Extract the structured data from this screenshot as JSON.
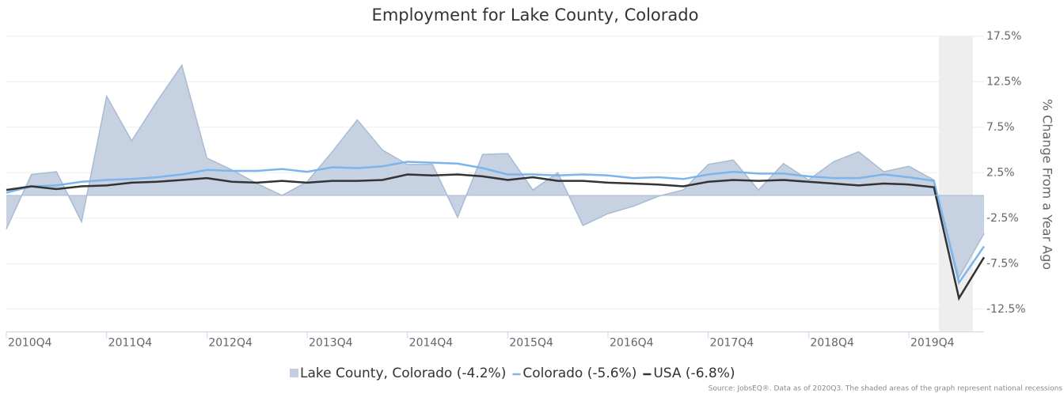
{
  "chart_data": {
    "type": "area-line",
    "title": "Employment for Lake County, Colorado",
    "y_label": "% Change From a Year Ago",
    "source": "Source: JobsEQ®. Data as of 2020Q3. The shaded areas of the graph represent national recessions",
    "categories": [
      "2010Q4",
      null,
      null,
      null,
      "2011Q4",
      null,
      null,
      null,
      "2012Q4",
      null,
      null,
      null,
      "2013Q4",
      null,
      null,
      null,
      "2014Q4",
      null,
      null,
      null,
      "2015Q4",
      null,
      null,
      null,
      "2016Q4",
      null,
      null,
      null,
      "2017Q4",
      null,
      null,
      null,
      "2018Q4",
      null,
      null,
      null,
      "2019Q4",
      null,
      null,
      null
    ],
    "series": [
      {
        "name": "Lake County, Colorado (-4.2%)",
        "kind": "area",
        "color": "#c3cfe0",
        "values": [
          -3.7,
          2.3,
          2.6,
          -2.9,
          10.9,
          6.0,
          10.3,
          14.3,
          4.1,
          2.8,
          1.3,
          0.0,
          1.5,
          4.8,
          8.3,
          5.0,
          3.4,
          3.4,
          -2.4,
          4.5,
          4.6,
          0.6,
          2.5,
          -3.3,
          -2.0,
          -1.2,
          -0.1,
          0.6,
          3.4,
          3.9,
          0.6,
          3.5,
          1.7,
          3.7,
          4.8,
          2.6,
          3.2,
          1.7,
          -9.0,
          -4.2
        ]
      },
      {
        "name": "Colorado (-5.6%)",
        "kind": "line",
        "color": "#7cb5ec",
        "values": [
          0.3,
          1.0,
          1.1,
          1.5,
          1.7,
          1.8,
          2.0,
          2.3,
          2.8,
          2.7,
          2.7,
          2.9,
          2.6,
          3.1,
          3.0,
          3.2,
          3.7,
          3.6,
          3.5,
          3.0,
          2.3,
          2.3,
          2.2,
          2.3,
          2.2,
          1.9,
          2.0,
          1.8,
          2.3,
          2.6,
          2.4,
          2.4,
          2.1,
          1.9,
          1.9,
          2.3,
          2.0,
          1.6,
          -9.6,
          -5.6
        ]
      },
      {
        "name": "USA (-6.8%)",
        "kind": "line",
        "color": "#333333",
        "values": [
          0.6,
          1.0,
          0.7,
          1.0,
          1.1,
          1.4,
          1.5,
          1.7,
          1.9,
          1.5,
          1.4,
          1.6,
          1.4,
          1.6,
          1.6,
          1.7,
          2.3,
          2.2,
          2.3,
          2.1,
          1.7,
          2.0,
          1.6,
          1.6,
          1.4,
          1.3,
          1.2,
          1.0,
          1.5,
          1.7,
          1.6,
          1.7,
          1.5,
          1.3,
          1.1,
          1.3,
          1.2,
          0.9,
          -11.3,
          -6.8
        ]
      }
    ],
    "ylim": [
      -15,
      17.5
    ],
    "yticks": [
      {
        "value": 17.5,
        "label": "17.5%"
      },
      {
        "value": 12.5,
        "label": "12.5%"
      },
      {
        "value": 7.5,
        "label": "7.5%"
      },
      {
        "value": 2.5,
        "label": "2.5%"
      },
      {
        "value": -2.5,
        "label": "-2.5%"
      },
      {
        "value": -7.5,
        "label": "-7.5%"
      },
      {
        "value": -12.5,
        "label": "-12.5%"
      }
    ],
    "grid": true
  }
}
